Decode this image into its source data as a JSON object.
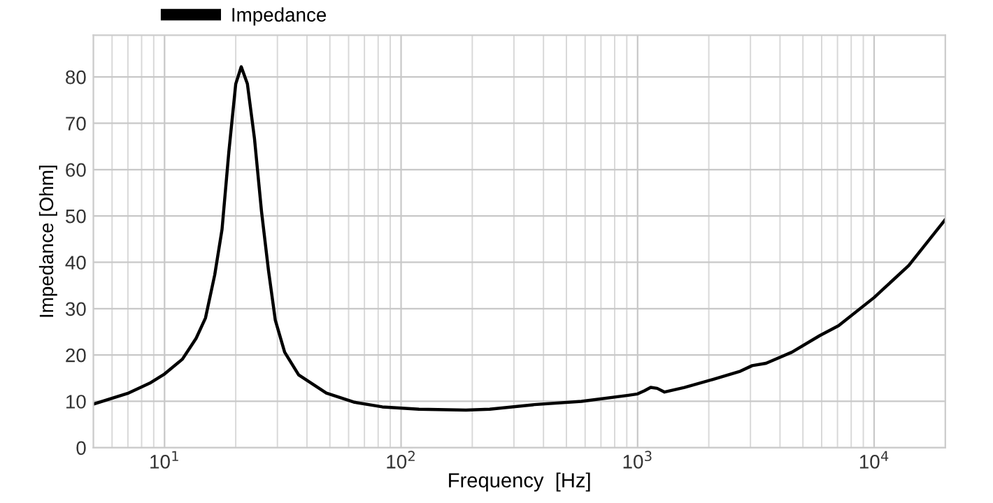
{
  "chart_data": {
    "type": "line",
    "xlabel": "Frequency  [Hz]",
    "ylabel": "Impedance [Ohm]",
    "log": "x",
    "grid": true,
    "legend": "top",
    "line_style": "solid",
    "marker": "none",
    "xlim": [
      5,
      20000
    ],
    "ylim": [
      0,
      89
    ],
    "xticks": [
      {
        "value": 10,
        "label": "10$^{1}$"
      },
      {
        "value": 100,
        "label": "10$^{2}$"
      },
      {
        "value": 1000,
        "label": "10$^{3}$"
      },
      {
        "value": 10000,
        "label": "10$^{4}$"
      }
    ],
    "yticks": [
      0,
      10,
      20,
      30,
      40,
      50,
      60,
      70,
      80
    ],
    "series": [
      {
        "name": "Impedance",
        "color": "#000000",
        "x": [
          5.0,
          7.05,
          8.65,
          10,
          11.9,
          13.6,
          14.9,
          16.3,
          17.5,
          18.7,
          20.0,
          21.1,
          22.4,
          24.0,
          25.7,
          27.5,
          29.4,
          32.2,
          36.9,
          48.3,
          63.6,
          83.3,
          119,
          188,
          237,
          367,
          579,
          913,
          1000,
          1070,
          1136,
          1210,
          1300,
          1577,
          2070,
          2720,
          3050,
          3490,
          4490,
          5900,
          7070,
          10000,
          14000,
          19900
        ],
        "values": [
          9.4,
          11.8,
          13.9,
          15.9,
          19.1,
          23.6,
          28,
          37.3,
          47.1,
          63.8,
          78.5,
          82.2,
          78.5,
          66.7,
          51,
          38.3,
          27.5,
          20.6,
          15.7,
          11.8,
          9.8,
          8.8,
          8.3,
          8.1,
          8.3,
          9.3,
          10.0,
          11.3,
          11.6,
          12.3,
          13.0,
          12.8,
          12.0,
          13.0,
          14.7,
          16.5,
          17.7,
          18.2,
          20.6,
          24.2,
          26.3,
          32.4,
          39.3,
          49.1
        ]
      }
    ]
  }
}
